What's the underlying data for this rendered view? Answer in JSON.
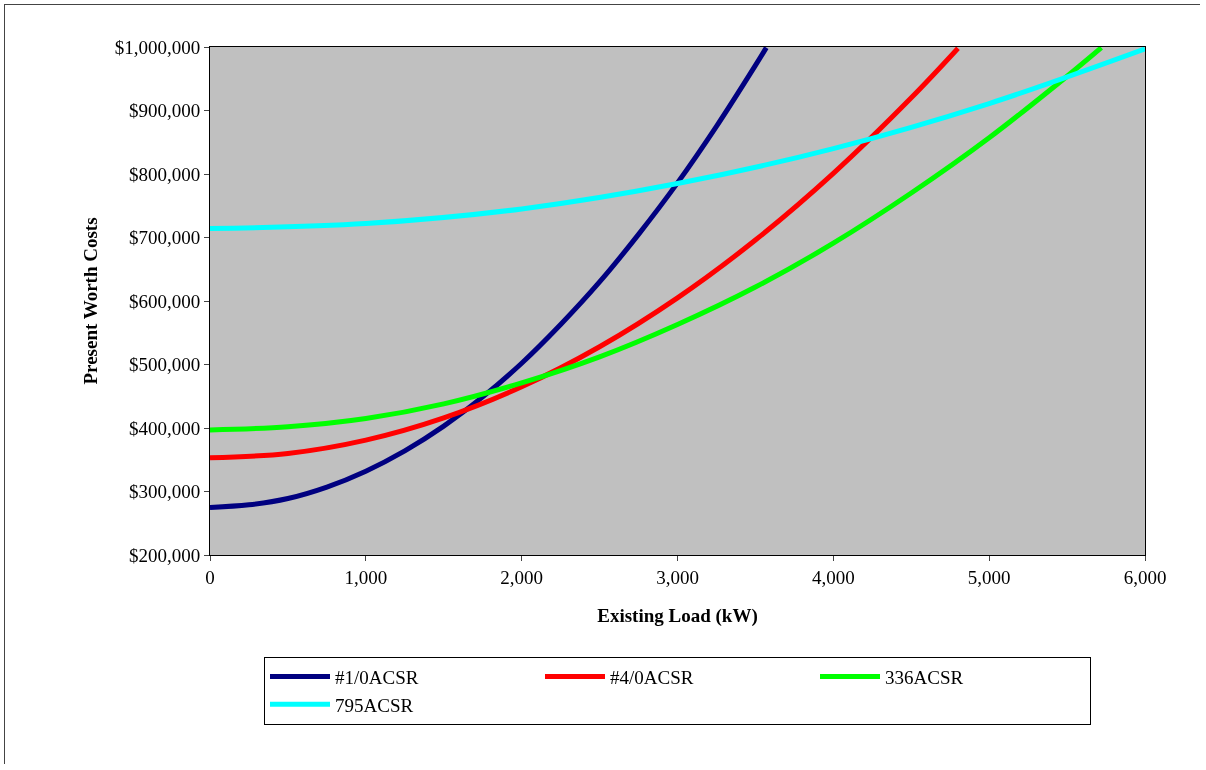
{
  "chart_data": {
    "type": "line",
    "xlabel": "Existing Load (kW)",
    "ylabel": "Present Worth Costs",
    "xlim": [
      0,
      6000
    ],
    "xticks": [
      {
        "value": 0,
        "label": "0"
      },
      {
        "value": 1000,
        "label": "1,000"
      },
      {
        "value": 2000,
        "label": "2,000"
      },
      {
        "value": 3000,
        "label": "3,000"
      },
      {
        "value": 4000,
        "label": "4,000"
      },
      {
        "value": 5000,
        "label": "5,000"
      },
      {
        "value": 6000,
        "label": "6,000"
      }
    ],
    "ylim": [
      200000,
      1000000
    ],
    "yticks": [
      {
        "value": 200000,
        "label": "$200,000"
      },
      {
        "value": 300000,
        "label": "$300,000"
      },
      {
        "value": 400000,
        "label": "$400,000"
      },
      {
        "value": 500000,
        "label": "$500,000"
      },
      {
        "value": 600000,
        "label": "$600,000"
      },
      {
        "value": 700000,
        "label": "$700,000"
      },
      {
        "value": 800000,
        "label": "$800,000"
      },
      {
        "value": 900000,
        "label": "$900,000"
      },
      {
        "value": 1000000,
        "label": "$1,000,000"
      }
    ],
    "grid": false,
    "legend": "bottom",
    "marker": "none",
    "line_style": "solid",
    "series": [
      {
        "name": "#1/0ACSR",
        "color": "#000080",
        "x": [
          0,
          250,
          500,
          750,
          1000,
          1250,
          1500,
          1750,
          2000,
          2250,
          2500,
          2750,
          3000,
          3250,
          3500,
          3570
        ],
        "values": [
          275000,
          279000,
          289000,
          307000,
          332000,
          364000,
          403000,
          449000,
          502000,
          563000,
          630000,
          705000,
          786000,
          875000,
          971000,
          999000
        ]
      },
      {
        "name": "#4/0ACSR",
        "color": "#ff0000",
        "x": [
          0,
          500,
          1000,
          1500,
          2000,
          2500,
          3000,
          3500,
          4000,
          4500,
          4800
        ],
        "values": [
          353000,
          360000,
          381000,
          416000,
          465000,
          528000,
          605000,
          696000,
          801000,
          920000,
          998000
        ]
      },
      {
        "name": "336ACSR",
        "color": "#00ff00",
        "x": [
          0,
          500,
          1000,
          1500,
          2000,
          2500,
          3000,
          3500,
          4000,
          4500,
          5000,
          5500,
          5720
        ],
        "values": [
          397000,
          402000,
          415000,
          438000,
          471000,
          512000,
          563000,
          622000,
          691000,
          770000,
          857000,
          954000,
          999000
        ]
      },
      {
        "name": "795ACSR",
        "color": "#00ffff",
        "x": [
          0,
          1000,
          2000,
          3000,
          4000,
          5000,
          6000
        ],
        "values": [
          714000,
          722000,
          745000,
          785000,
          840000,
          911000,
          997000
        ]
      }
    ]
  }
}
